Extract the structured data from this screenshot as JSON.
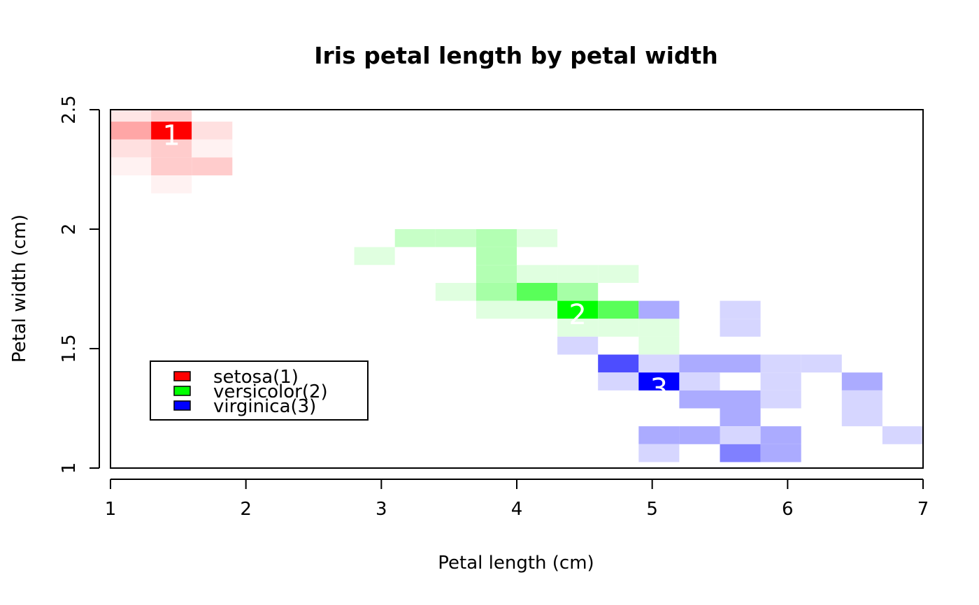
{
  "chart_data": {
    "type": "heatmap",
    "title": "Iris petal length by petal width",
    "xlabel": "Petal length (cm)",
    "ylabel": "Petal width (cm)",
    "xlim": [
      1,
      7
    ],
    "ylim": [
      1,
      2.5
    ],
    "x_ticks": [
      "1",
      "2",
      "3",
      "4",
      "5",
      "6",
      "7"
    ],
    "y_ticks": [
      "1",
      "1.5",
      "2",
      "2.5"
    ],
    "grid": false,
    "legend_position": "bottom-left",
    "legend": [
      {
        "label": "setosa(1)",
        "color": "#ff0000"
      },
      {
        "label": "versicolor(2)",
        "color": "#00ff00"
      },
      {
        "label": "virginica(3)",
        "color": "#0000ff"
      }
    ],
    "cell_size": {
      "x": 0.3,
      "y": 0.075
    },
    "series": [
      {
        "name": "setosa(1)",
        "color": "#ff0000",
        "marker_label": "1",
        "marker_at": {
          "x": 1.45,
          "y": 2.39
        },
        "cells": [
          {
            "x": 1.0,
            "y": 2.45,
            "v": 0.1
          },
          {
            "x": 1.3,
            "y": 2.45,
            "v": 0.2
          },
          {
            "x": 1.0,
            "y": 2.375,
            "v": 0.35
          },
          {
            "x": 1.3,
            "y": 2.375,
            "v": 1.0
          },
          {
            "x": 1.6,
            "y": 2.375,
            "v": 0.12
          },
          {
            "x": 1.0,
            "y": 2.3,
            "v": 0.12
          },
          {
            "x": 1.3,
            "y": 2.3,
            "v": 0.2
          },
          {
            "x": 1.6,
            "y": 2.3,
            "v": 0.05
          },
          {
            "x": 1.0,
            "y": 2.225,
            "v": 0.05
          },
          {
            "x": 1.3,
            "y": 2.225,
            "v": 0.2
          },
          {
            "x": 1.6,
            "y": 2.225,
            "v": 0.2
          },
          {
            "x": 1.3,
            "y": 2.15,
            "v": 0.05
          }
        ]
      },
      {
        "name": "versicolor(2)",
        "color": "#00ff00",
        "marker_label": "2",
        "marker_at": {
          "x": 4.45,
          "y": 1.64
        },
        "cells": [
          {
            "x": 3.1,
            "y": 1.925,
            "v": 0.22
          },
          {
            "x": 3.4,
            "y": 1.925,
            "v": 0.22
          },
          {
            "x": 3.7,
            "y": 1.925,
            "v": 0.3
          },
          {
            "x": 4.0,
            "y": 1.925,
            "v": 0.12
          },
          {
            "x": 2.8,
            "y": 1.85,
            "v": 0.12
          },
          {
            "x": 3.7,
            "y": 1.85,
            "v": 0.3
          },
          {
            "x": 3.7,
            "y": 1.775,
            "v": 0.3
          },
          {
            "x": 4.0,
            "y": 1.775,
            "v": 0.12
          },
          {
            "x": 4.3,
            "y": 1.775,
            "v": 0.12
          },
          {
            "x": 4.6,
            "y": 1.775,
            "v": 0.12
          },
          {
            "x": 3.4,
            "y": 1.7,
            "v": 0.12
          },
          {
            "x": 3.7,
            "y": 1.7,
            "v": 0.35
          },
          {
            "x": 4.0,
            "y": 1.7,
            "v": 0.65
          },
          {
            "x": 4.3,
            "y": 1.7,
            "v": 0.35
          },
          {
            "x": 3.7,
            "y": 1.625,
            "v": 0.12
          },
          {
            "x": 4.0,
            "y": 1.625,
            "v": 0.12
          },
          {
            "x": 4.3,
            "y": 1.625,
            "v": 1.0
          },
          {
            "x": 4.6,
            "y": 1.625,
            "v": 0.65
          },
          {
            "x": 4.3,
            "y": 1.55,
            "v": 0.12
          },
          {
            "x": 4.6,
            "y": 1.55,
            "v": 0.12
          },
          {
            "x": 4.9,
            "y": 1.55,
            "v": 0.12
          },
          {
            "x": 4.9,
            "y": 1.475,
            "v": 0.12
          }
        ]
      },
      {
        "name": "virginica(3)",
        "color": "#0000ff",
        "marker_label": "3",
        "marker_at": {
          "x": 5.05,
          "y": 1.33
        },
        "cells": [
          {
            "x": 4.9,
            "y": 1.625,
            "v": 0.33
          },
          {
            "x": 5.5,
            "y": 1.625,
            "v": 0.16
          },
          {
            "x": 5.5,
            "y": 1.55,
            "v": 0.16
          },
          {
            "x": 4.3,
            "y": 1.475,
            "v": 0.16
          },
          {
            "x": 4.6,
            "y": 1.4,
            "v": 0.7
          },
          {
            "x": 4.9,
            "y": 1.4,
            "v": 0.16
          },
          {
            "x": 5.2,
            "y": 1.4,
            "v": 0.33
          },
          {
            "x": 5.5,
            "y": 1.4,
            "v": 0.33
          },
          {
            "x": 5.8,
            "y": 1.4,
            "v": 0.16
          },
          {
            "x": 6.1,
            "y": 1.4,
            "v": 0.16
          },
          {
            "x": 4.6,
            "y": 1.325,
            "v": 0.16
          },
          {
            "x": 4.9,
            "y": 1.325,
            "v": 1.0
          },
          {
            "x": 5.2,
            "y": 1.325,
            "v": 0.16
          },
          {
            "x": 5.8,
            "y": 1.325,
            "v": 0.16
          },
          {
            "x": 6.4,
            "y": 1.325,
            "v": 0.33
          },
          {
            "x": 5.2,
            "y": 1.25,
            "v": 0.33
          },
          {
            "x": 5.5,
            "y": 1.25,
            "v": 0.33
          },
          {
            "x": 5.8,
            "y": 1.25,
            "v": 0.16
          },
          {
            "x": 6.4,
            "y": 1.25,
            "v": 0.16
          },
          {
            "x": 5.5,
            "y": 1.175,
            "v": 0.33
          },
          {
            "x": 6.4,
            "y": 1.175,
            "v": 0.16
          },
          {
            "x": 4.9,
            "y": 1.1,
            "v": 0.33
          },
          {
            "x": 5.2,
            "y": 1.1,
            "v": 0.33
          },
          {
            "x": 5.5,
            "y": 1.1,
            "v": 0.16
          },
          {
            "x": 5.8,
            "y": 1.1,
            "v": 0.33
          },
          {
            "x": 6.7,
            "y": 1.1,
            "v": 0.16
          },
          {
            "x": 4.9,
            "y": 1.025,
            "v": 0.16
          },
          {
            "x": 5.5,
            "y": 1.025,
            "v": 0.5
          },
          {
            "x": 5.8,
            "y": 1.025,
            "v": 0.33
          }
        ]
      }
    ]
  }
}
